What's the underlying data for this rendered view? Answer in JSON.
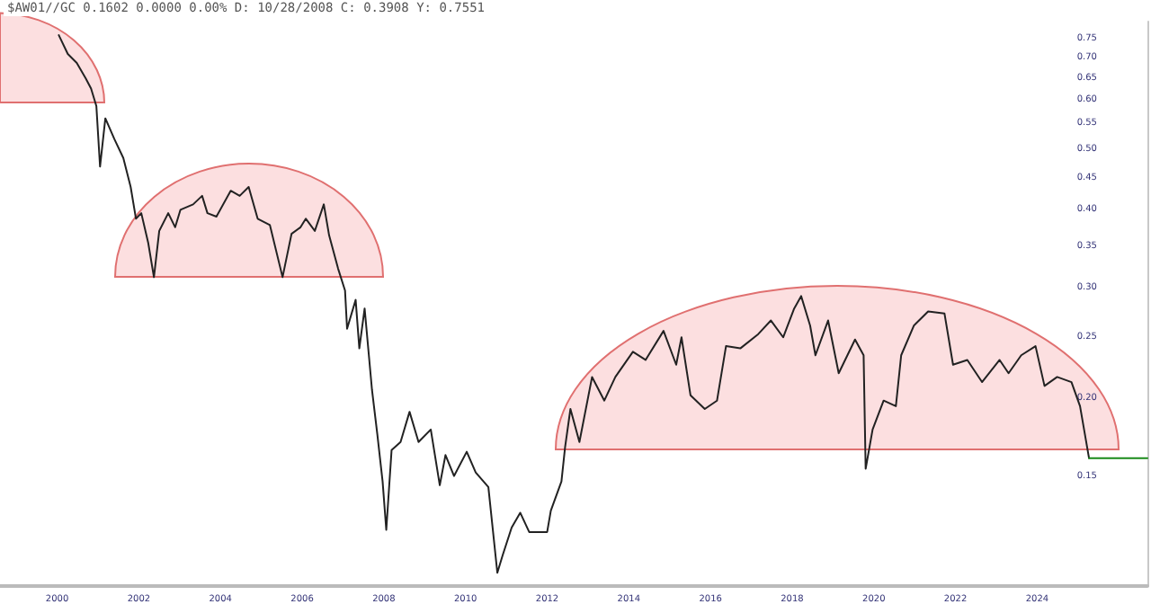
{
  "chart_data": {
    "type": "line",
    "title": "$AW01//GC 0.1602 0.0000 0.00% D: 10/28/2008 C: 0.3908 Y: 0.7551",
    "log": "y",
    "grid": false,
    "marker": "none",
    "line_style": "solid",
    "xlim": [
      1998.6,
      2026.7
    ],
    "xticks": [
      2000,
      2002,
      2004,
      2006,
      2008,
      2010,
      2012,
      2014,
      2016,
      2018,
      2020,
      2022,
      2024
    ],
    "ylim": [
      0.1,
      0.8
    ],
    "yticks": [
      0.15,
      {
        "value": 0.2,
        "label": "0.20"
      },
      0.25,
      {
        "value": 0.3,
        "label": "0.30"
      },
      0.35,
      {
        "value": 0.4,
        "label": "0.40"
      },
      0.45,
      {
        "value": 0.5,
        "label": "0.50"
      },
      0.55,
      {
        "value": 0.6,
        "label": "0.60"
      },
      0.65,
      {
        "value": 0.7,
        "label": "0.70"
      },
      0.75
    ],
    "series": [
      {
        "color": "#222222",
        "x": [
          2000.04,
          2000.26,
          2000.48,
          2000.7,
          2000.83,
          2000.96,
          2001.05,
          2001.18,
          2001.4,
          2001.62,
          2001.8,
          2001.93,
          2002.06,
          2002.23,
          2002.37,
          2002.5,
          2002.72,
          2002.89,
          2003.02,
          2003.33,
          2003.55,
          2003.68,
          2003.9,
          2004.25,
          2004.47,
          2004.69,
          2004.91,
          2005.21,
          2005.52,
          2005.74,
          2005.96,
          2006.09,
          2006.31,
          2006.53,
          2006.66,
          2006.88,
          2007.05,
          2007.1,
          2007.31,
          2007.4,
          2007.53,
          2007.71,
          2007.84,
          2007.97,
          2008.06,
          2008.19,
          2008.41,
          2008.63,
          2008.85,
          2009.15,
          2009.37,
          2009.51,
          2009.72,
          2010.03,
          2010.25,
          2010.56,
          2010.78,
          2010.91,
          2011.13,
          2011.34,
          2011.56,
          2011.78,
          2012.0,
          2012.09,
          2012.35,
          2012.44,
          2012.57,
          2012.79,
          2013.1,
          2013.4,
          2013.67,
          2014.1,
          2014.41,
          2014.85,
          2015.16,
          2015.29,
          2015.51,
          2015.86,
          2016.16,
          2016.38,
          2016.73,
          2017.17,
          2017.48,
          2017.78,
          2018.05,
          2018.22,
          2018.44,
          2018.57,
          2018.88,
          2019.14,
          2019.54,
          2019.75,
          2019.8,
          2019.97,
          2020.24,
          2020.54,
          2020.67,
          2020.98,
          2021.33,
          2021.73,
          2021.94,
          2022.29,
          2022.65,
          2023.08,
          2023.3,
          2023.61,
          2023.96,
          2024.18,
          2024.49,
          2024.84,
          2025.05,
          2025.27
        ],
        "values": [
          0.761,
          0.71,
          0.687,
          0.649,
          0.625,
          0.586,
          0.469,
          0.56,
          0.519,
          0.484,
          0.435,
          0.387,
          0.395,
          0.354,
          0.312,
          0.37,
          0.395,
          0.375,
          0.4,
          0.408,
          0.421,
          0.395,
          0.39,
          0.429,
          0.421,
          0.435,
          0.387,
          0.378,
          0.312,
          0.366,
          0.375,
          0.387,
          0.37,
          0.408,
          0.364,
          0.322,
          0.297,
          0.258,
          0.287,
          0.24,
          0.278,
          0.206,
          0.175,
          0.147,
          0.123,
          0.165,
          0.17,
          0.19,
          0.17,
          0.178,
          0.145,
          0.162,
          0.15,
          0.164,
          0.152,
          0.144,
          0.105,
          0.112,
          0.124,
          0.131,
          0.122,
          0.122,
          0.122,
          0.132,
          0.147,
          0.167,
          0.192,
          0.17,
          0.216,
          0.198,
          0.216,
          0.237,
          0.23,
          0.256,
          0.226,
          0.25,
          0.202,
          0.192,
          0.198,
          0.242,
          0.24,
          0.253,
          0.266,
          0.25,
          0.278,
          0.291,
          0.261,
          0.234,
          0.266,
          0.219,
          0.248,
          0.234,
          0.154,
          0.178,
          0.198,
          0.194,
          0.234,
          0.261,
          0.275,
          0.273,
          0.226,
          0.23,
          0.212,
          0.23,
          0.219,
          0.234,
          0.242,
          0.209,
          0.216,
          0.212,
          0.194,
          0.1602
        ]
      },
      {
        "color": "#1a8a1a",
        "x": [
          2025.27,
          2026.7
        ],
        "values": [
          0.1602,
          0.1602
        ]
      }
    ]
  }
}
